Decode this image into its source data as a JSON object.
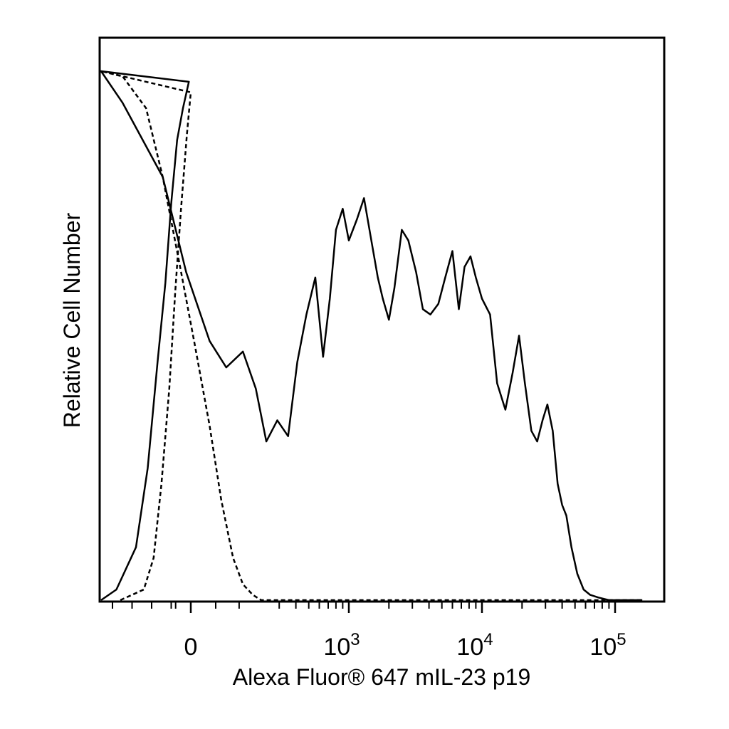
{
  "chart_data": {
    "type": "line",
    "title": "",
    "xlabel": "Alexa Fluor® 647 mIL-23 p19",
    "ylabel": "Relative Cell Number",
    "x_scale": "biexponential",
    "xlim": [
      -300,
      200000
    ],
    "ylim": [
      0,
      1
    ],
    "grid": false,
    "legend": "none",
    "x_ticks": [
      {
        "value": 0,
        "base": "0",
        "exp": ""
      },
      {
        "value": 1000,
        "base": "10",
        "exp": "3"
      },
      {
        "value": 10000,
        "base": "10",
        "exp": "4"
      },
      {
        "value": 100000,
        "base": "10",
        "exp": "5"
      }
    ],
    "series": [
      {
        "style": "solid",
        "color": "#000000",
        "x": [
          -260,
          -190,
          -140,
          -110,
          -85,
          -65,
          -50,
          -35,
          -20,
          -5,
          5,
          20,
          40,
          60,
          90,
          120,
          160,
          200,
          240,
          290,
          350,
          410,
          480,
          560,
          640,
          720,
          800,
          900,
          1000,
          1150,
          1300,
          1500,
          1650,
          1800,
          2000,
          2200,
          2500,
          2800,
          3200,
          3600,
          4100,
          4700,
          5300,
          6000,
          6700,
          7400,
          8200,
          9000,
          10000,
          11500,
          13000,
          15000,
          17000,
          19000,
          21000,
          23500,
          26000,
          28500,
          31000,
          34000,
          37000,
          40000,
          43000,
          47000,
          52000,
          58000,
          65000,
          75000,
          90000,
          105000,
          130000,
          160000
        ],
        "y": [
          0.0,
          0.02,
          0.1,
          0.25,
          0.45,
          0.6,
          0.75,
          0.87,
          0.93,
          0.98,
          1.0,
          0.94,
          0.8,
          0.62,
          0.49,
          0.44,
          0.47,
          0.4,
          0.3,
          0.34,
          0.31,
          0.45,
          0.54,
          0.61,
          0.46,
          0.57,
          0.7,
          0.74,
          0.68,
          0.72,
          0.76,
          0.67,
          0.61,
          0.57,
          0.53,
          0.59,
          0.7,
          0.68,
          0.62,
          0.55,
          0.54,
          0.56,
          0.61,
          0.66,
          0.55,
          0.63,
          0.65,
          0.61,
          0.57,
          0.54,
          0.41,
          0.36,
          0.43,
          0.5,
          0.41,
          0.32,
          0.3,
          0.34,
          0.37,
          0.32,
          0.22,
          0.18,
          0.16,
          0.1,
          0.05,
          0.02,
          0.01,
          0.005,
          0.0,
          0.0,
          0.0,
          0.0
        ]
      },
      {
        "style": "dashed",
        "color": "#000000",
        "x": [
          -180,
          -150,
          -120,
          -95,
          -75,
          -55,
          -40,
          -25,
          -10,
          0,
          10,
          20,
          30,
          40,
          55,
          70,
          90,
          110,
          135,
          160,
          190,
          220,
          260,
          320,
          400,
          600,
          1000,
          3000,
          10000,
          100000,
          160000
        ],
        "y": [
          0.0,
          0.01,
          0.02,
          0.08,
          0.22,
          0.4,
          0.58,
          0.74,
          0.88,
          0.96,
          1.0,
          0.99,
          0.93,
          0.8,
          0.62,
          0.48,
          0.33,
          0.19,
          0.08,
          0.03,
          0.01,
          0.0,
          0.0,
          0.0,
          0.0,
          0.0,
          0.0,
          0.0,
          0.0,
          0.0,
          0.0
        ]
      }
    ]
  }
}
